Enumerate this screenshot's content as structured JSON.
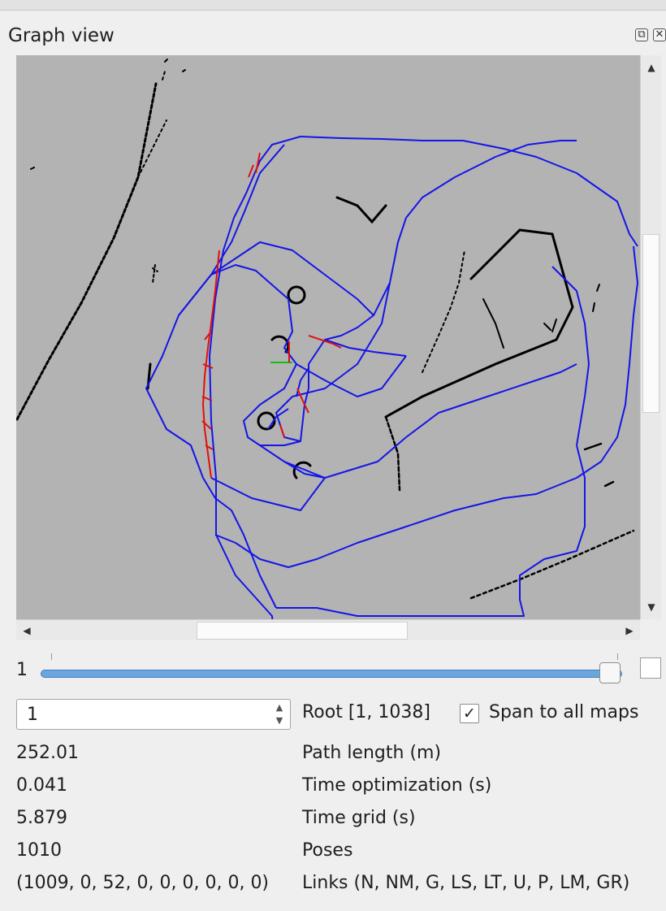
{
  "panel": {
    "title": "Graph view",
    "float_icon": "⧉",
    "close_icon": "✕"
  },
  "map_view": {
    "colors": {
      "background": "#b3b3b3",
      "path": "#1515e8",
      "obstacles": "#000000",
      "loop_links": "#e01010",
      "axis_x": "#e01010",
      "axis_y": "#10c010"
    }
  },
  "scroll": {
    "up": "▲",
    "down": "▼",
    "left": "◀",
    "right": "▶"
  },
  "slider": {
    "label": "1",
    "value_fraction": 1.0
  },
  "spinbox": {
    "value": "1",
    "up": "▲",
    "down": "▼"
  },
  "root_label": "Root [1, 1038]",
  "span_checkbox": {
    "checked": true,
    "mark": "✓",
    "label": "Span to all maps"
  },
  "stats": [
    {
      "value": "252.01",
      "label": "Path length (m)"
    },
    {
      "value": "0.041",
      "label": "Time optimization (s)"
    },
    {
      "value": "5.879",
      "label": "Time grid (s)"
    },
    {
      "value": "1010",
      "label": "Poses"
    },
    {
      "value": "(1009, 0, 52, 0, 0, 0, 0, 0, 0)",
      "label": "Links (N, NM, G, LS, LT, U, P, LM, GR)"
    }
  ]
}
